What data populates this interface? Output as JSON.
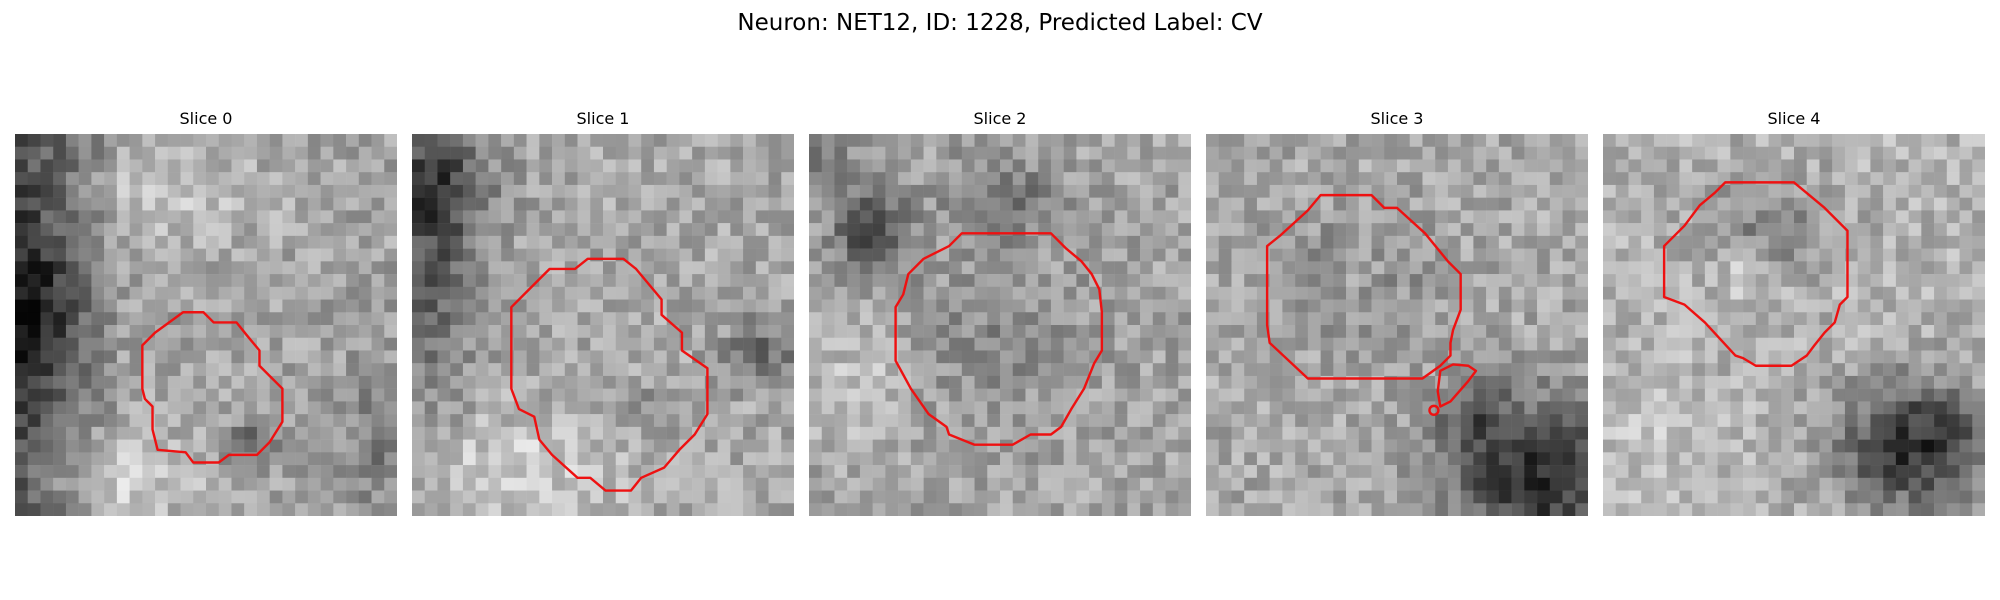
{
  "figure": {
    "title": "Neuron: NET12, ID: 1228, Predicted Label: CV",
    "contour_color": "#ee1111"
  },
  "panels": [
    {
      "title": "Slice 0"
    },
    {
      "title": "Slice 1"
    },
    {
      "title": "Slice 2"
    },
    {
      "title": "Slice 3"
    },
    {
      "title": "Slice 4"
    }
  ]
}
